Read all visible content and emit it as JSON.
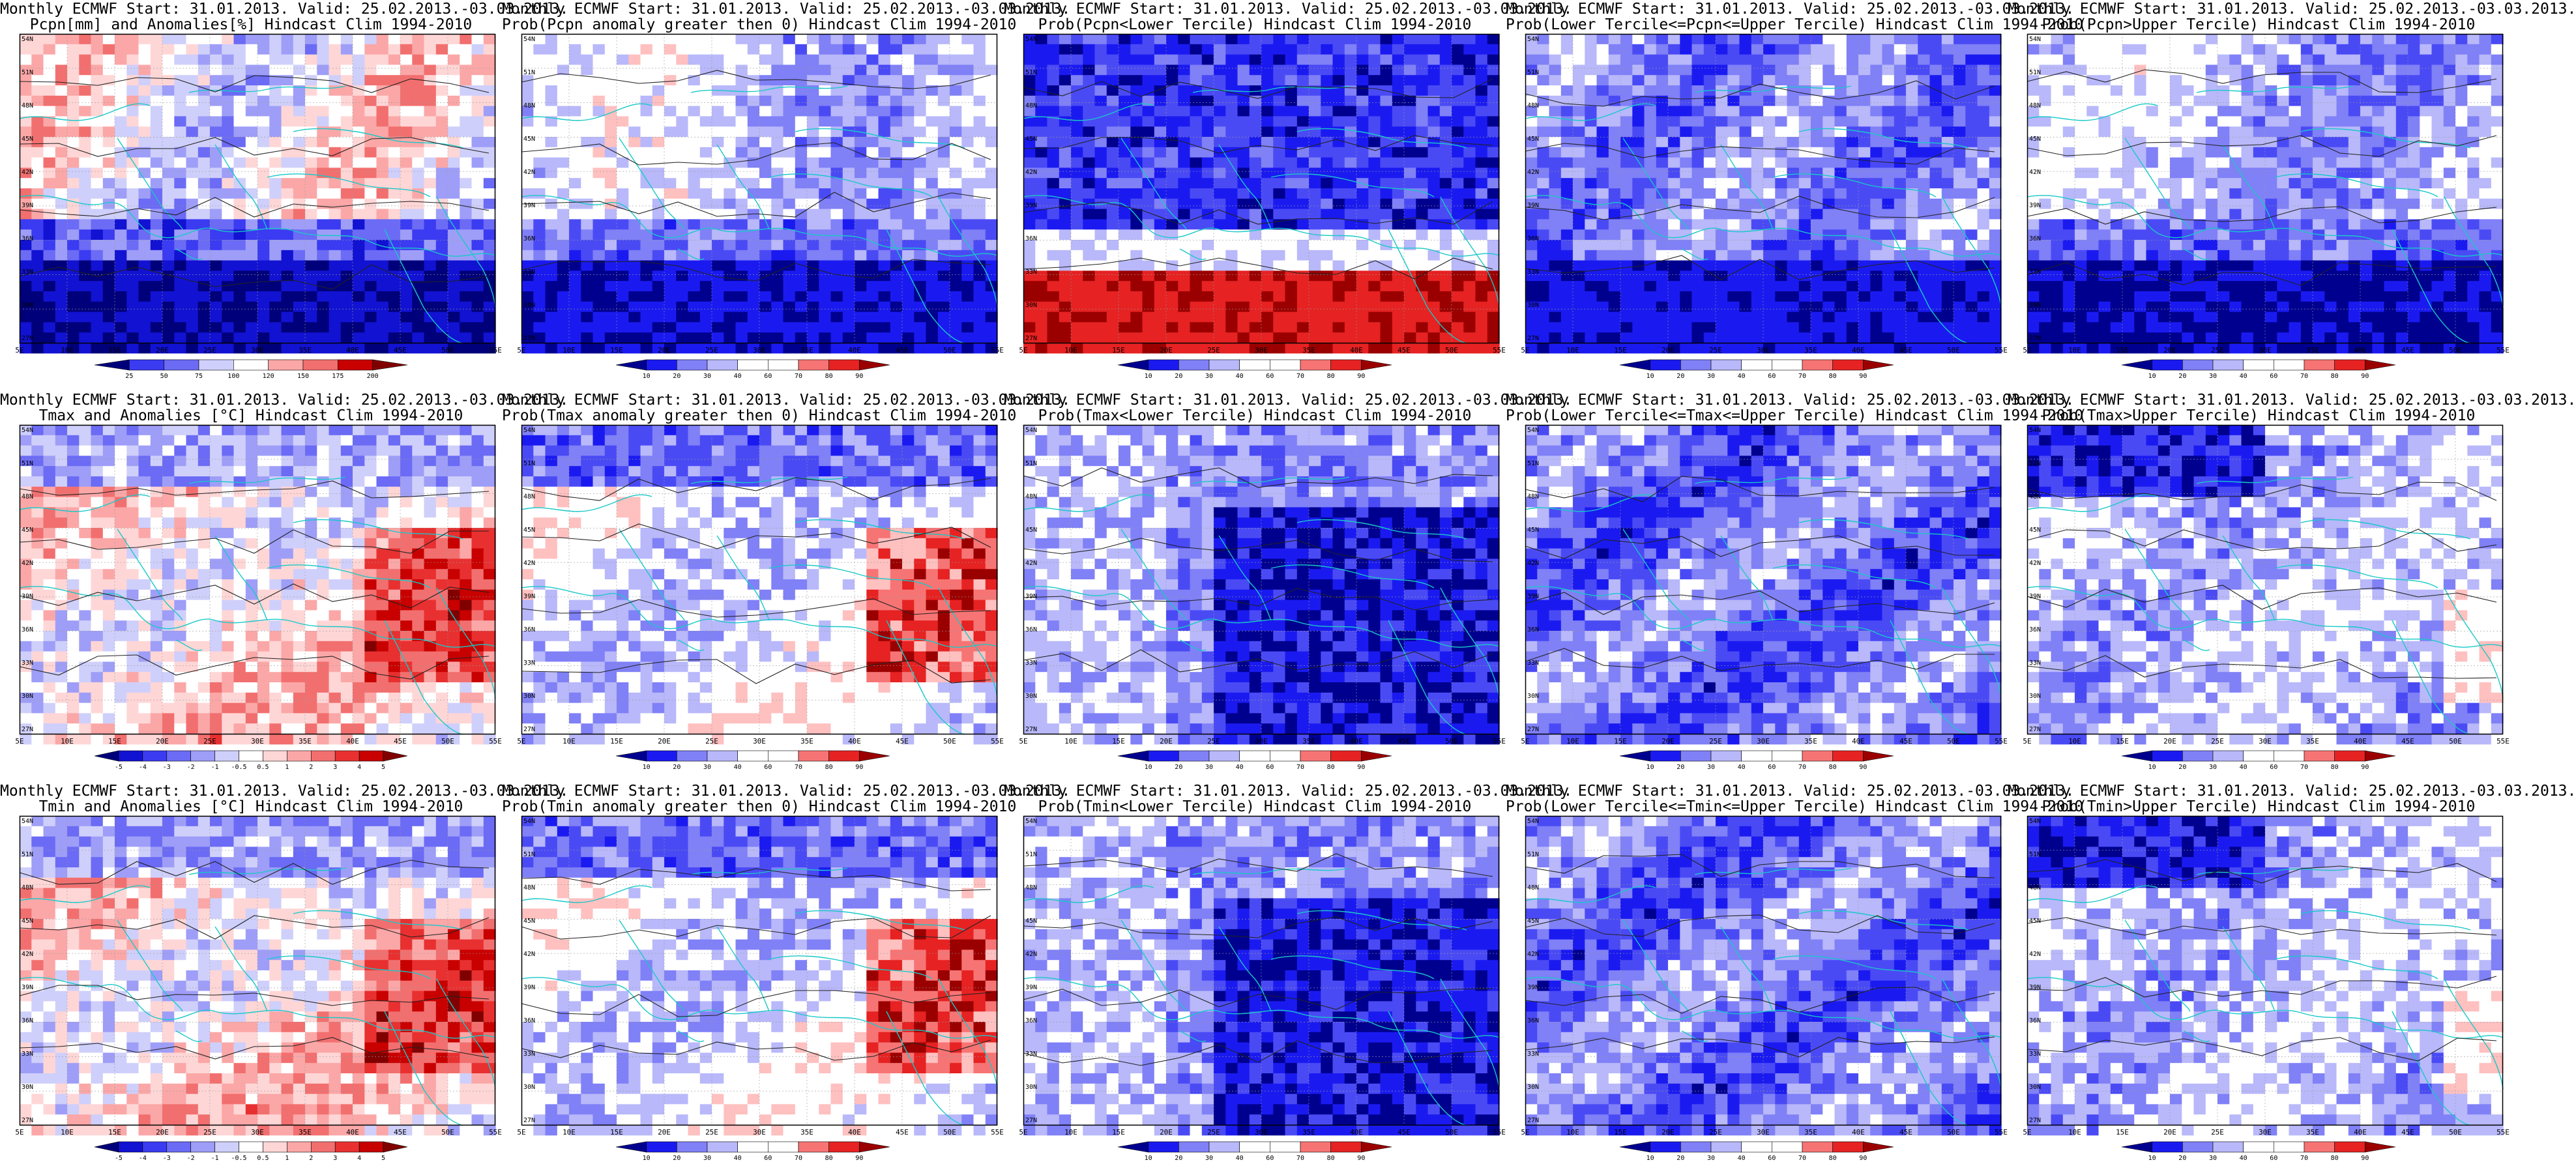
{
  "figure": {
    "lat_labels": [
      "54N",
      "51N",
      "48N",
      "45N",
      "42N",
      "39N",
      "36N",
      "33N",
      "30N",
      "27N"
    ],
    "lon_labels": [
      "5E",
      "10E",
      "15E",
      "20E",
      "25E",
      "30E",
      "35E",
      "40E",
      "45E",
      "50E",
      "55E"
    ],
    "palettes": {
      "div": [
        "#00007a",
        "#1212d2",
        "#3b3bf2",
        "#6b6bf5",
        "#9e9ef8",
        "#cfcffb",
        "#ffffff",
        "#ffd6d6",
        "#fba7a7",
        "#f26f6f",
        "#e83030",
        "#c80000",
        "#800000"
      ],
      "prob": [
        "#00008f",
        "#1a1af0",
        "#4a4af5",
        "#8080f7",
        "#b8b8fa",
        "#ffffff",
        "#ffffff",
        "#ffc0c0",
        "#f77474",
        "#e62222",
        "#9b0000"
      ]
    },
    "panels": [
      {
        "id": "p-r1c1",
        "title1": "Monthly ECMWF Start: 31.01.2013. Valid: 25.02.2013.-03.03.2013.",
        "title2": "Pcpn[mm] and Anomalies[%] Hindcast Clim 1994-2010",
        "field": "precip-anomaly",
        "cbar_labels": [
          "25",
          "50",
          "75",
          "100",
          "120",
          "150",
          "175",
          "200"
        ],
        "palette": "div"
      },
      {
        "id": "p-r1c2",
        "title1": "Monthly ECMWF Start: 31.01.2013. Valid: 25.02.2013.-03.03.2013.",
        "title2": "Prob(Pcpn anomaly greater then 0) Hindcast Clim 1994-2010",
        "field": "precip-prob-pos",
        "cbar_labels": [
          "10",
          "20",
          "30",
          "40",
          "60",
          "70",
          "80",
          "90"
        ],
        "palette": "prob"
      },
      {
        "id": "p-r1c3",
        "title1": "Monthly ECMWF Start: 31.01.2013. Valid: 25.02.2013.-03.03.2013.",
        "title2": "Prob(Pcpn<Lower Tercile) Hindcast Clim 1994-2010",
        "field": "precip-lower",
        "cbar_labels": [
          "10",
          "20",
          "30",
          "40",
          "60",
          "70",
          "80",
          "90"
        ],
        "palette": "prob"
      },
      {
        "id": "p-r1c4",
        "title1": "Monthly ECMWF Start: 31.01.2013. Valid: 25.02.2013.-03.03.2013.",
        "title2": "Prob(Lower Tercile<=Pcpn<=Upper Tercile) Hindcast Clim 1994-2010",
        "field": "precip-middle",
        "cbar_labels": [
          "10",
          "20",
          "30",
          "40",
          "60",
          "70",
          "80",
          "90"
        ],
        "palette": "prob"
      },
      {
        "id": "p-r1c5",
        "title1": "Monthly ECMWF Start: 31.01.2013. Valid: 25.02.2013.-03.03.2013.",
        "title2": "Prob(Pcpn>Upper Tercile) Hindcast Clim 1994-2010",
        "field": "precip-upper",
        "cbar_labels": [
          "10",
          "20",
          "30",
          "40",
          "60",
          "70",
          "80",
          "90"
        ],
        "palette": "prob"
      },
      {
        "id": "p-r2c1",
        "title1": "Monthly ECMWF Start: 31.01.2013. Valid: 25.02.2013.-03.03.2013.",
        "title2": "Tmax and Anomalies [°C] Hindcast Clim 1994-2010",
        "field": "tmax-anomaly",
        "cbar_labels": [
          "-5",
          "-4",
          "-3",
          "-2",
          "-1",
          "-0.5",
          "0.5",
          "1",
          "2",
          "3",
          "4",
          "5"
        ],
        "palette": "div"
      },
      {
        "id": "p-r2c2",
        "title1": "Monthly ECMWF Start: 31.01.2013. Valid: 25.02.2013.-03.03.2013.",
        "title2": "Prob(Tmax anomaly greater then 0) Hindcast Clim 1994-2010",
        "field": "tmax-prob-pos",
        "cbar_labels": [
          "10",
          "20",
          "30",
          "40",
          "60",
          "70",
          "80",
          "90"
        ],
        "palette": "prob"
      },
      {
        "id": "p-r2c3",
        "title1": "Monthly ECMWF Start: 31.01.2013. Valid: 25.02.2013.-03.03.2013.",
        "title2": "Prob(Tmax<Lower Tercile) Hindcast Clim 1994-2010",
        "field": "tmax-lower",
        "cbar_labels": [
          "10",
          "20",
          "30",
          "40",
          "60",
          "70",
          "80",
          "90"
        ],
        "palette": "prob"
      },
      {
        "id": "p-r2c4",
        "title1": "Monthly ECMWF Start: 31.01.2013. Valid: 25.02.2013.-03.03.2013.",
        "title2": "Prob(Lower Tercile<=Tmax<=Upper Tercile) Hindcast Clim 1994-2010",
        "field": "tmax-middle",
        "cbar_labels": [
          "10",
          "20",
          "30",
          "40",
          "60",
          "70",
          "80",
          "90"
        ],
        "palette": "prob"
      },
      {
        "id": "p-r2c5",
        "title1": "Monthly ECMWF Start: 31.01.2013. Valid: 25.02.2013.-03.03.2013.",
        "title2": "Prob(Tmax>Upper Tercile) Hindcast Clim 1994-2010",
        "field": "tmax-upper",
        "cbar_labels": [
          "10",
          "20",
          "30",
          "40",
          "60",
          "70",
          "80",
          "90"
        ],
        "palette": "prob"
      },
      {
        "id": "p-r3c1",
        "title1": "Monthly ECMWF Start: 31.01.2013. Valid: 25.02.2013.-03.03.2013.",
        "title2": "Tmin and Anomalies [°C] Hindcast Clim 1994-2010",
        "field": "tmin-anomaly",
        "cbar_labels": [
          "-5",
          "-4",
          "-3",
          "-2",
          "-1",
          "-0.5",
          "0.5",
          "1",
          "2",
          "3",
          "4",
          "5"
        ],
        "palette": "div"
      },
      {
        "id": "p-r3c2",
        "title1": "Monthly ECMWF Start: 31.01.2013. Valid: 25.02.2013.-03.03.2013.",
        "title2": "Prob(Tmin anomaly greater then 0) Hindcast Clim 1994-2010",
        "field": "tmin-prob-pos",
        "cbar_labels": [
          "10",
          "20",
          "30",
          "40",
          "60",
          "70",
          "80",
          "90"
        ],
        "palette": "prob"
      },
      {
        "id": "p-r3c3",
        "title1": "Monthly ECMWF Start: 31.01.2013. Valid: 25.02.2013.-03.03.2013.",
        "title2": "Prob(Tmin<Lower Tercile) Hindcast Clim 1994-2010",
        "field": "tmin-lower",
        "cbar_labels": [
          "10",
          "20",
          "30",
          "40",
          "60",
          "70",
          "80",
          "90"
        ],
        "palette": "prob"
      },
      {
        "id": "p-r3c4",
        "title1": "Monthly ECMWF Start: 31.01.2013. Valid: 25.02.2013.-03.03.2013.",
        "title2": "Prob(Lower Tercile<=Tmin<=Upper Tercile) Hindcast Clim 1994-2010",
        "field": "tmin-middle",
        "cbar_labels": [
          "10",
          "20",
          "30",
          "40",
          "60",
          "70",
          "80",
          "90"
        ],
        "palette": "prob"
      },
      {
        "id": "p-r3c5",
        "title1": "Monthly ECMWF Start: 31.01.2013. Valid: 25.02.2013.-03.03.2013.",
        "title2": "Prob(Tmin>Upper Tercile) Hindcast Clim 1994-2010",
        "field": "tmin-upper",
        "cbar_labels": [
          "10",
          "20",
          "30",
          "40",
          "60",
          "70",
          "80",
          "90"
        ],
        "palette": "prob"
      }
    ]
  }
}
